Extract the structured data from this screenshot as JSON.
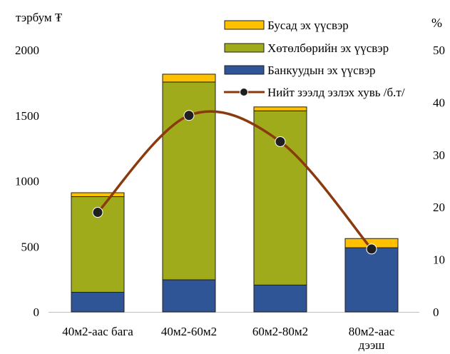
{
  "chart_data": {
    "type": "bar",
    "stacked": true,
    "categories": [
      "40м2-аас бага",
      "40м2-60м2",
      "60м2-80м2",
      "80м2-аас дээш"
    ],
    "series": [
      {
        "name": "Банкуудын эх үүсвэр",
        "values": [
          150,
          245,
          205,
          490
        ],
        "color": "#2f5597",
        "axis": "left"
      },
      {
        "name": "Хөтөлбөрийн эх үүсвэр",
        "values": [
          730,
          1510,
          1330,
          0
        ],
        "color": "#a0ab1c",
        "axis": "left"
      },
      {
        "name": "Бусад эх үүсвэр",
        "values": [
          30,
          60,
          30,
          70
        ],
        "color": "#ffc000",
        "axis": "left"
      }
    ],
    "line_series": {
      "name": "Нийт зээлд эзлэх хувь /б.т/",
      "values": [
        19,
        37.5,
        32.5,
        12
      ],
      "color": "#8b3a0f",
      "marker_color": "#1f1f1f",
      "axis": "right"
    },
    "left_axis": {
      "label": "тэрбум ₮",
      "min": 0,
      "max": 2000,
      "ticks": [
        0,
        500,
        1000,
        1500,
        2000
      ]
    },
    "right_axis": {
      "label": "%",
      "min": 0,
      "max": 50,
      "ticks": [
        0,
        10,
        20,
        30,
        40,
        50
      ]
    },
    "category_lines": [
      [
        "40м2-аас бага"
      ],
      [
        "40м2-60м2"
      ],
      [
        "60м2-80м2"
      ],
      [
        "80м2-аас",
        "дээш"
      ]
    ],
    "legend": {
      "position": "top-right",
      "order": [
        2,
        1,
        0,
        "line"
      ]
    },
    "grid": false
  }
}
